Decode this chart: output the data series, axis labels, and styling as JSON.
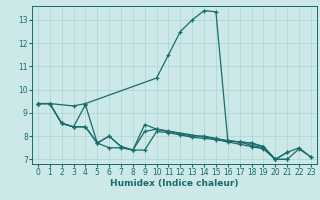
{
  "xlabel": "Humidex (Indice chaleur)",
  "bg_color": "#cce8e8",
  "grid_color": "#aad4d4",
  "line_color": "#1a6b6b",
  "xlim": [
    -0.5,
    23.5
  ],
  "ylim": [
    6.8,
    13.6
  ],
  "yticks": [
    7,
    8,
    9,
    10,
    11,
    12,
    13
  ],
  "xticks": [
    0,
    1,
    2,
    3,
    4,
    5,
    6,
    7,
    8,
    9,
    10,
    11,
    12,
    13,
    14,
    15,
    16,
    17,
    18,
    19,
    20,
    21,
    22,
    23
  ],
  "lines": [
    {
      "x": [
        0,
        1,
        3,
        4,
        10,
        11,
        12,
        13,
        14,
        15,
        16,
        17,
        18,
        19,
        20,
        21,
        22,
        23
      ],
      "y": [
        9.4,
        9.4,
        9.3,
        9.4,
        10.5,
        11.5,
        12.5,
        13.0,
        13.4,
        13.35,
        7.8,
        7.75,
        7.7,
        7.55,
        7.0,
        7.3,
        7.5,
        7.1
      ]
    },
    {
      "x": [
        0,
        1,
        2,
        3,
        4,
        5,
        6,
        7,
        8,
        9,
        10,
        16,
        17,
        18,
        19,
        20,
        21
      ],
      "y": [
        9.4,
        9.4,
        8.55,
        8.4,
        9.35,
        7.7,
        8.0,
        7.55,
        7.4,
        8.5,
        8.3,
        7.8,
        7.75,
        7.7,
        7.55,
        7.0,
        7.3
      ]
    },
    {
      "x": [
        0,
        1,
        2,
        3,
        4,
        5,
        6,
        7,
        8,
        9,
        10,
        11,
        12,
        13,
        14,
        15,
        16,
        17,
        18,
        19,
        20,
        21
      ],
      "y": [
        9.4,
        9.4,
        8.55,
        8.4,
        8.4,
        7.7,
        8.0,
        7.55,
        7.4,
        8.2,
        8.3,
        8.2,
        8.1,
        8.0,
        8.0,
        7.9,
        7.8,
        7.75,
        7.6,
        7.5,
        7.0,
        7.0
      ]
    },
    {
      "x": [
        0,
        1,
        2,
        3,
        4,
        5,
        6,
        7,
        8,
        9,
        10,
        11,
        12,
        13,
        14,
        15,
        16,
        17,
        18,
        19,
        20,
        21,
        22,
        23
      ],
      "y": [
        9.4,
        9.4,
        8.55,
        8.4,
        8.4,
        7.7,
        7.5,
        7.5,
        7.4,
        7.4,
        8.2,
        8.15,
        8.05,
        7.95,
        7.9,
        7.85,
        7.75,
        7.65,
        7.55,
        7.45,
        7.0,
        7.0,
        7.45,
        7.1
      ]
    }
  ]
}
